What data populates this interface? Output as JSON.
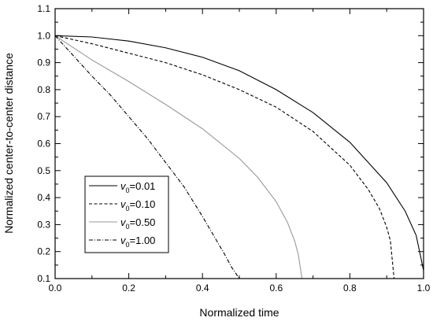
{
  "chart_data": {
    "type": "line",
    "xlabel": "Normalized time",
    "ylabel": "Normalized center-to-center distance",
    "xlim": [
      0.0,
      1.0
    ],
    "ylim": [
      0.1,
      1.1
    ],
    "xticks": [
      "0.0",
      "0.2",
      "0.4",
      "0.6",
      "0.8",
      "1.0"
    ],
    "yticks": [
      "0.1",
      "0.2",
      "0.3",
      "0.4",
      "0.5",
      "0.6",
      "0.7",
      "0.8",
      "0.9",
      "1.0",
      "1.1"
    ],
    "grid": false,
    "legend_position": "lower-left",
    "series": [
      {
        "legend_symbol": "v",
        "legend_subscript": "0",
        "legend_value": "=0.01",
        "color": "#000000",
        "dash": "solid",
        "x": [
          0.0,
          0.1,
          0.2,
          0.3,
          0.4,
          0.5,
          0.6,
          0.7,
          0.8,
          0.9,
          0.95,
          0.98,
          1.0
        ],
        "y": [
          1.0,
          0.995,
          0.98,
          0.955,
          0.92,
          0.87,
          0.8,
          0.715,
          0.605,
          0.455,
          0.35,
          0.26,
          0.13
        ]
      },
      {
        "legend_symbol": "v",
        "legend_subscript": "0",
        "legend_value": "=0.10",
        "color": "#000000",
        "dash": "dashed",
        "x": [
          0.0,
          0.1,
          0.2,
          0.3,
          0.4,
          0.5,
          0.6,
          0.7,
          0.8,
          0.85,
          0.88,
          0.9,
          0.91,
          0.92
        ],
        "y": [
          1.0,
          0.97,
          0.935,
          0.9,
          0.855,
          0.8,
          0.735,
          0.645,
          0.52,
          0.43,
          0.36,
          0.29,
          0.24,
          0.1
        ]
      },
      {
        "legend_symbol": "v",
        "legend_subscript": "0",
        "legend_value": "=0.50",
        "color": "#999999",
        "dash": "solid",
        "x": [
          0.0,
          0.1,
          0.2,
          0.3,
          0.4,
          0.5,
          0.55,
          0.6,
          0.63,
          0.65,
          0.66,
          0.67
        ],
        "y": [
          1.0,
          0.91,
          0.83,
          0.745,
          0.655,
          0.545,
          0.475,
          0.385,
          0.31,
          0.24,
          0.19,
          0.1
        ]
      },
      {
        "legend_symbol": "v",
        "legend_subscript": "0",
        "legend_value": "=1.00",
        "color": "#000000",
        "dash": "dashdot",
        "x": [
          0.0,
          0.05,
          0.1,
          0.15,
          0.2,
          0.25,
          0.3,
          0.35,
          0.4,
          0.43,
          0.46,
          0.48,
          0.49,
          0.5
        ],
        "y": [
          1.0,
          0.925,
          0.85,
          0.78,
          0.7,
          0.62,
          0.53,
          0.44,
          0.33,
          0.26,
          0.19,
          0.14,
          0.12,
          0.1
        ]
      }
    ]
  }
}
